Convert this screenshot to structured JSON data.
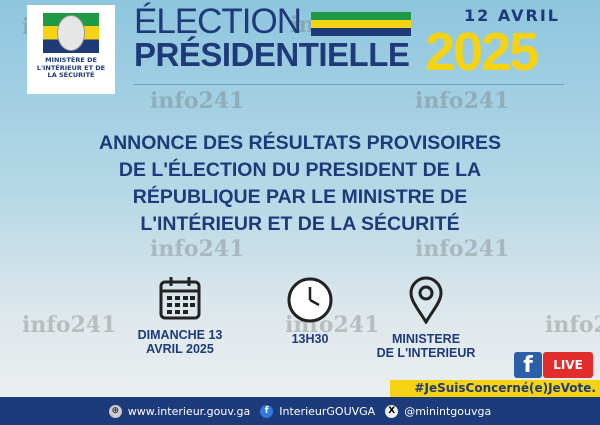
{
  "logo": {
    "text": "MINISTÈRE DE\nL'INTÉRIEUR ET DE\nLA SÉCURITÉ"
  },
  "header": {
    "line1": "ÉLECTION",
    "line2": "PRÉSIDENTIELLE",
    "date": "12 AVRIL",
    "year": "2025"
  },
  "headline": [
    "ANNONCE DES RÉSULTATS PROVISOIRES",
    "DE L'ÉLECTION DU PRESIDENT DE LA",
    "RÉPUBLIQUE PAR LE MINISTRE DE",
    "L'INTÉRIEUR ET DE LA SÉCURITÉ"
  ],
  "details": [
    {
      "icon": "calendar-icon",
      "text": "DIMANCHE 13\nAVRIL 2025"
    },
    {
      "icon": "clock-icon",
      "text": "13H30"
    },
    {
      "icon": "location-pin-icon",
      "text": "MINISTERE\nDE L'INTERIEUR"
    }
  ],
  "watermark": "info241",
  "live": {
    "fb": "f",
    "label": "LIVE"
  },
  "hashtag": "#JeSuisConcerné(e)JeVote.",
  "footer": {
    "website": "www.interieur.gouv.ga",
    "facebook": "InterieurGOUVGA",
    "x": "@minintgouvga"
  },
  "colors": {
    "navy": "#1e3a78",
    "yellow": "#f5d312",
    "green": "#1e9a45",
    "live_red": "#e32c2c"
  }
}
